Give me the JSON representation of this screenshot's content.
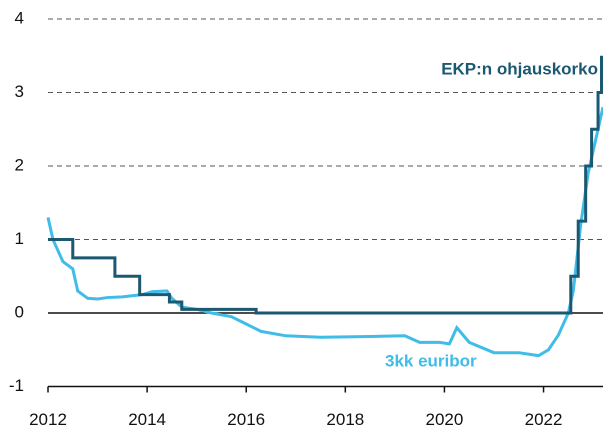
{
  "chart_data": {
    "type": "line",
    "xlim": [
      2012,
      2023.2
    ],
    "xticks": [
      2012,
      2014,
      2016,
      2018,
      2020,
      2022
    ],
    "ylim": [
      -1,
      4
    ],
    "yticks": [
      -1,
      0,
      1,
      2,
      3,
      4
    ],
    "grid": true,
    "series": [
      {
        "name": "EKP:n ohjauskorko",
        "color": "#1b5872",
        "x": [
          2012,
          2012.5,
          2012.5,
          2013.35,
          2013.35,
          2013.85,
          2013.85,
          2014.45,
          2014.45,
          2014.7,
          2014.7,
          2016.2,
          2016.2,
          2022.55,
          2022.55,
          2022.7,
          2022.7,
          2022.85,
          2022.85,
          2022.97,
          2022.97,
          2023.1,
          2023.1,
          2023.17,
          2023.17
        ],
        "values": [
          1,
          1,
          0.75,
          0.75,
          0.5,
          0.5,
          0.25,
          0.25,
          0.15,
          0.15,
          0.05,
          0.05,
          0,
          0,
          0.5,
          0.5,
          1.25,
          1.25,
          2,
          2,
          2.5,
          2.5,
          3,
          3,
          3.5
        ]
      },
      {
        "name": "3kk euribor",
        "color": "#3fbde8",
        "x": [
          2012,
          2012.1,
          2012.3,
          2012.5,
          2012.6,
          2012.8,
          2013,
          2013.2,
          2013.5,
          2013.9,
          2014.1,
          2014.4,
          2014.5,
          2014.7,
          2015,
          2015.3,
          2015.7,
          2016,
          2016.3,
          2016.8,
          2017.5,
          2018.5,
          2019.2,
          2019.5,
          2019.9,
          2020.1,
          2020.25,
          2020.5,
          2021,
          2021.5,
          2021.9,
          2022.1,
          2022.3,
          2022.5,
          2022.6,
          2022.75,
          2022.9,
          2023,
          2023.2
        ],
        "values": [
          1.3,
          1.0,
          0.7,
          0.6,
          0.3,
          0.2,
          0.19,
          0.21,
          0.22,
          0.25,
          0.29,
          0.3,
          0.2,
          0.08,
          0.05,
          0.0,
          -0.05,
          -0.15,
          -0.25,
          -0.31,
          -0.33,
          -0.32,
          -0.31,
          -0.4,
          -0.4,
          -0.42,
          -0.2,
          -0.4,
          -0.54,
          -0.54,
          -0.58,
          -0.5,
          -0.3,
          0.0,
          0.3,
          1.2,
          1.9,
          2.2,
          2.8
        ]
      }
    ]
  }
}
